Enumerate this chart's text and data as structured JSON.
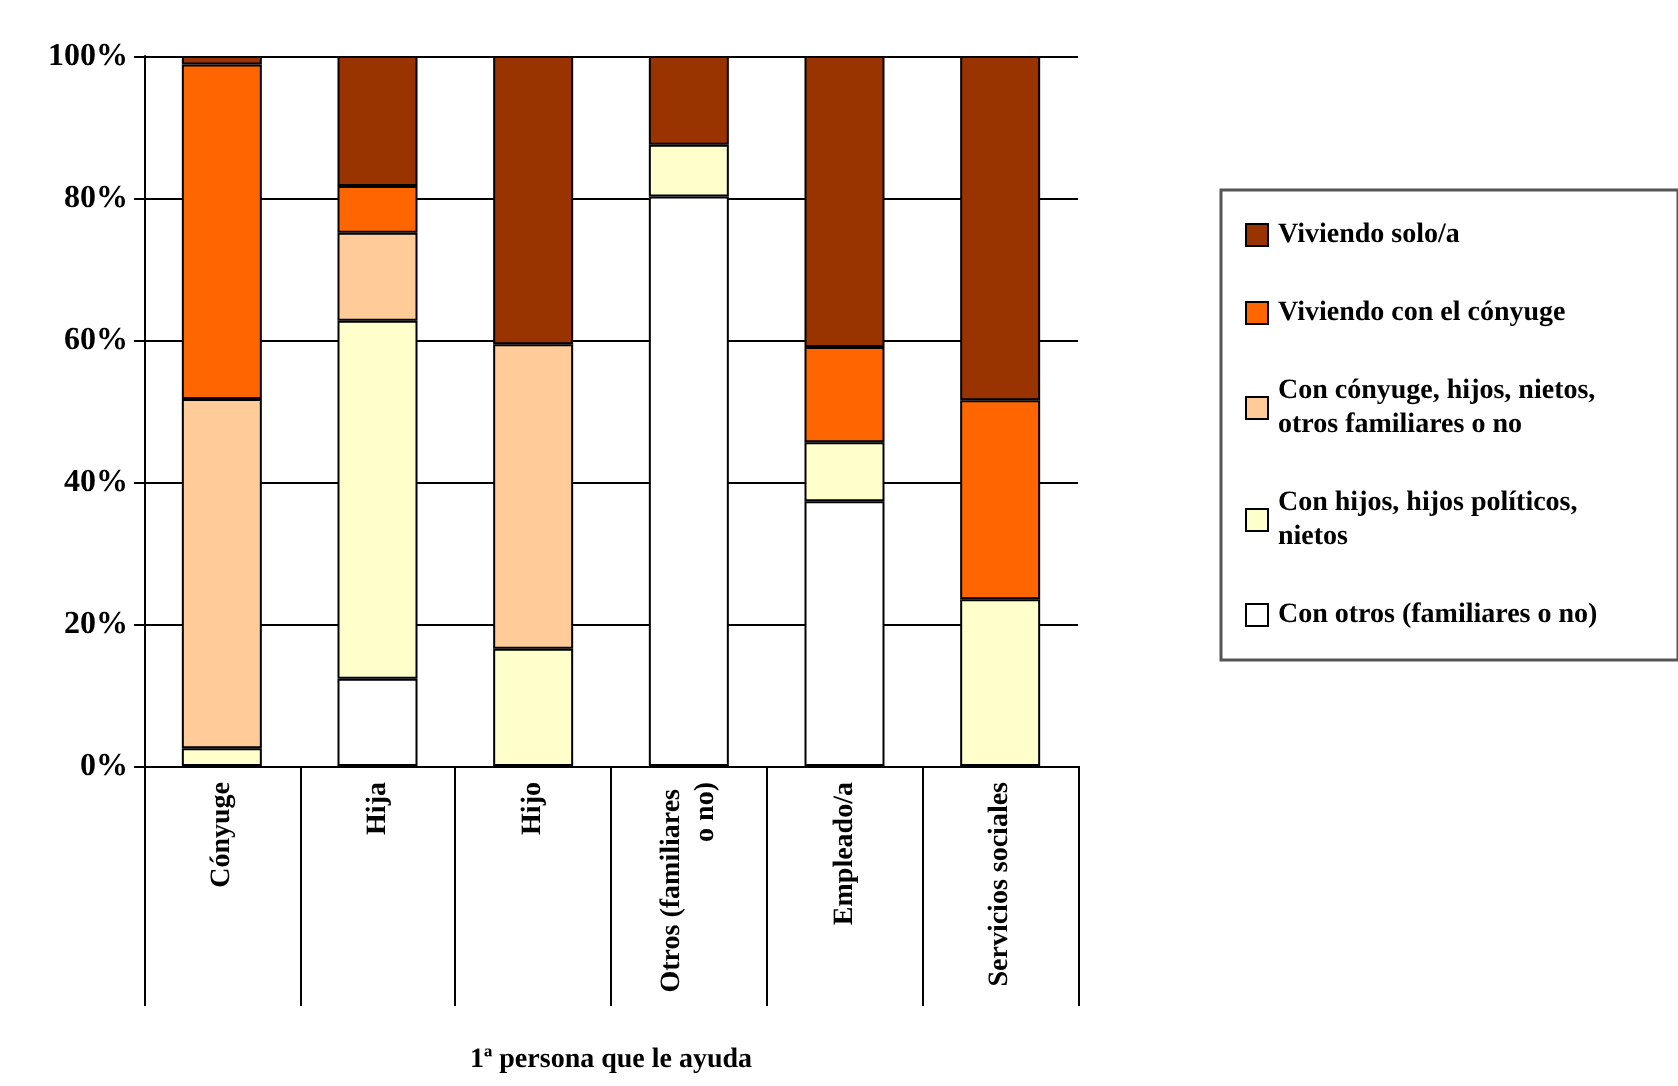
{
  "chart_data": {
    "type": "bar",
    "stacked": true,
    "xlabel": "1ª persona que le ayuda",
    "categories": [
      "Cónyuge",
      "Hija",
      "Hijo",
      "Otros (familiares o no)",
      "Empleado/a",
      "Servicios sociales"
    ],
    "series": [
      {
        "name": "Con otros (familiares o no)",
        "color": "#ffffff",
        "values": [
          0,
          12.3,
          0,
          80.2,
          37.3,
          0
        ]
      },
      {
        "name": "Con hijos, hijos políticos, nietos",
        "color": "#ffffcc",
        "values": [
          2.5,
          50.4,
          16.5,
          7.3,
          8.3,
          23.5
        ]
      },
      {
        "name": "Con cónyuge, hijos, nietos, otros familiares o no",
        "color": "#ffcc99",
        "values": [
          49.2,
          12.4,
          42.9,
          0,
          0,
          0
        ]
      },
      {
        "name": "Viviendo con el cónyuge",
        "color": "#ff6600",
        "values": [
          47.1,
          6.6,
          0,
          0,
          13.4,
          28.0
        ]
      },
      {
        "name": "Viviendo solo/a",
        "color": "#993300",
        "values": [
          1.2,
          18.3,
          40.6,
          12.5,
          41.0,
          48.5
        ]
      }
    ],
    "ylim": [
      0,
      100
    ],
    "yticks": [
      {
        "value": 0,
        "label": "0%"
      },
      {
        "value": 20,
        "label": "20%"
      },
      {
        "value": 40,
        "label": "40%"
      },
      {
        "value": 60,
        "label": "60%"
      },
      {
        "value": 80,
        "label": "80%"
      },
      {
        "value": 100,
        "label": "100%"
      }
    ],
    "grid": "y",
    "legend": "right"
  }
}
